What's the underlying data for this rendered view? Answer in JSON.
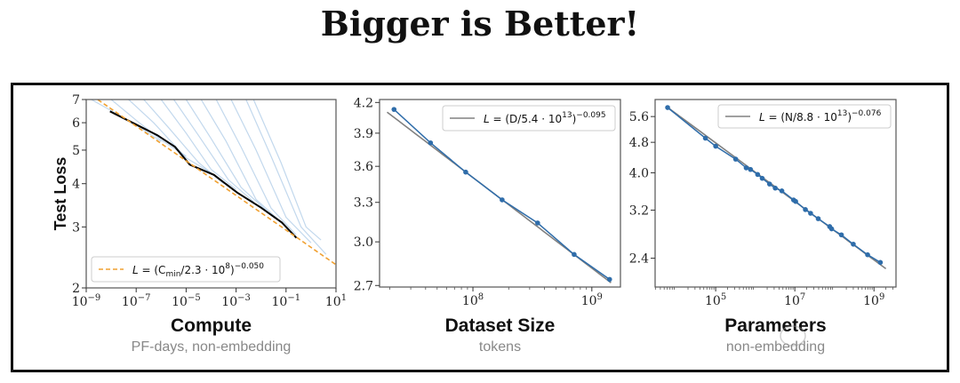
{
  "title": "Bigger is Better!",
  "watermark": "颠覆式创新",
  "colors": {
    "point": "#2f6daa",
    "curve": "#8fb8de",
    "frontier": "#000000",
    "fit": "#808080",
    "fit_orange": "#f0a030",
    "axis": "#555555"
  },
  "chart_data": [
    {
      "type": "line",
      "xlabel": "Compute",
      "xsublabel": "PF-days, non-embedding",
      "ylabel": "Test Loss",
      "xscale": "log",
      "yscale": "log",
      "xlim": [
        1e-09,
        10
      ],
      "ylim": [
        2,
        7
      ],
      "xticks": [
        {
          "base": "10",
          "exp": "−9",
          "v": 1e-09
        },
        {
          "base": "10",
          "exp": "−7",
          "v": 1e-07
        },
        {
          "base": "10",
          "exp": "−5",
          "v": 1e-05
        },
        {
          "base": "10",
          "exp": "−3",
          "v": 0.001
        },
        {
          "base": "10",
          "exp": "−1",
          "v": 0.1
        },
        {
          "base": "10",
          "exp": "1",
          "v": 10
        }
      ],
      "yticks": [
        {
          "label": "2",
          "v": 2
        },
        {
          "label": "3",
          "v": 3
        },
        {
          "label": "4",
          "v": 4
        },
        {
          "label": "5",
          "v": 5
        },
        {
          "label": "6",
          "v": 6
        },
        {
          "label": "7",
          "v": 7
        }
      ],
      "legend": {
        "position": "lower-left",
        "style": "dashed-orange",
        "parts": [
          {
            "t": "L"
          },
          {
            "t": " = (C"
          },
          {
            "t": "min",
            "sub": true
          },
          {
            "t": "/2.3 · 10"
          },
          {
            "t": "8",
            "sup": true
          },
          {
            "t": ")"
          },
          {
            "t": "−0.050",
            "sup": true
          }
        ]
      },
      "fit": {
        "coef": 230000000.0,
        "exponent": -0.05,
        "xrange": [
          1e-09,
          10
        ]
      },
      "frontier": [
        [
          8.9e-09,
          6.47
        ],
        [
          7.9e-08,
          5.98
        ],
        [
          7.1e-07,
          5.52
        ],
        [
          3.6e-06,
          5.11
        ],
        [
          1.4e-05,
          4.54
        ],
        [
          0.00013,
          4.24
        ],
        [
          0.0011,
          3.77
        ],
        [
          0.01,
          3.41
        ],
        [
          0.068,
          3.09
        ],
        [
          0.26,
          2.79
        ]
      ],
      "curves": [
        [
          [
            1.6e-09,
            7
          ],
          [
            1e-08,
            6.5
          ],
          [
            1e-07,
            5.9
          ],
          [
            1e-06,
            5.3
          ]
        ],
        [
          [
            1e-08,
            7
          ],
          [
            1e-07,
            6.1
          ],
          [
            1e-06,
            5.35
          ],
          [
            1e-05,
            4.8
          ]
        ],
        [
          [
            5e-08,
            7
          ],
          [
            5e-07,
            6.0
          ],
          [
            1e-05,
            4.75
          ],
          [
            0.0001,
            4.3
          ]
        ],
        [
          [
            2e-07,
            7
          ],
          [
            2e-06,
            5.8
          ],
          [
            3.2e-05,
            4.6
          ],
          [
            0.00032,
            4.0
          ]
        ],
        [
          [
            1e-06,
            7
          ],
          [
            1e-05,
            5.6
          ],
          [
            0.0001,
            4.4
          ],
          [
            0.001,
            3.85
          ]
        ],
        [
          [
            3.2e-06,
            7
          ],
          [
            3.2e-05,
            5.5
          ],
          [
            0.0005,
            4.1
          ],
          [
            0.005,
            3.55
          ]
        ],
        [
          [
            1e-05,
            7
          ],
          [
            0.0001,
            5.4
          ],
          [
            0.0016,
            3.9
          ],
          [
            0.016,
            3.35
          ]
        ],
        [
          [
            4e-05,
            7
          ],
          [
            0.0004,
            5.3
          ],
          [
            0.0063,
            3.6
          ],
          [
            0.063,
            3.1
          ]
        ],
        [
          [
            0.00016,
            7
          ],
          [
            0.0016,
            5.1
          ],
          [
            0.025,
            3.4
          ],
          [
            0.25,
            2.85
          ]
        ],
        [
          [
            0.00063,
            7
          ],
          [
            0.0063,
            5.0
          ],
          [
            0.1,
            3.2
          ],
          [
            1,
            2.7
          ]
        ],
        [
          [
            0.0025,
            7
          ],
          [
            0.025,
            4.8
          ],
          [
            0.4,
            3.0
          ],
          [
            4,
            2.5
          ]
        ],
        [
          [
            0.005,
            7
          ],
          [
            0.063,
            4.6
          ],
          [
            0.63,
            3.0
          ],
          [
            2.5,
            2.75
          ]
        ]
      ]
    },
    {
      "type": "line",
      "xlabel": "Dataset Size",
      "xsublabel": "tokens",
      "xscale": "log",
      "yscale": "log",
      "xlim": [
        16400000.0,
        1740000000.0
      ],
      "ylim": [
        2.69,
        4.23
      ],
      "xticks": [
        {
          "base": "10",
          "exp": "8",
          "v": 100000000.0
        },
        {
          "base": "10",
          "exp": "9",
          "v": 1000000000.0
        }
      ],
      "yticks": [
        {
          "label": "2.7",
          "v": 2.7
        },
        {
          "label": "3.0",
          "v": 3.0
        },
        {
          "label": "3.3",
          "v": 3.3
        },
        {
          "label": "3.6",
          "v": 3.6
        },
        {
          "label": "3.9",
          "v": 3.9
        },
        {
          "label": "4.2",
          "v": 4.2
        }
      ],
      "legend": {
        "position": "top-right",
        "style": "solid-gray",
        "parts": [
          {
            "t": "L"
          },
          {
            "t": " = (D/5.4 · 10"
          },
          {
            "t": "13",
            "sup": true
          },
          {
            "t": ")"
          },
          {
            "t": "−0.095",
            "sup": true
          }
        ]
      },
      "fit": {
        "coef": 54000000000000.0,
        "exponent": -0.095,
        "xrange": [
          19000000.0,
          1450000000.0
        ]
      },
      "points": [
        [
          21700000.0,
          4.13
        ],
        [
          44000000.0,
          3.81
        ],
        [
          87000000.0,
          3.55
        ],
        [
          176000000.0,
          3.32
        ],
        [
          350000000.0,
          3.14
        ],
        [
          710000000.0,
          2.91
        ],
        [
          1410000000.0,
          2.74
        ]
      ]
    },
    {
      "type": "line",
      "xlabel": "Parameters",
      "xsublabel": "non-embedding",
      "xscale": "log",
      "yscale": "log",
      "xlim": [
        2950,
        3600000000.0
      ],
      "ylim": [
        2.02,
        6.2
      ],
      "xticks": [
        {
          "base": "10",
          "exp": "5",
          "v": 100000.0
        },
        {
          "base": "10",
          "exp": "7",
          "v": 10000000.0
        },
        {
          "base": "10",
          "exp": "9",
          "v": 1000000000.0
        }
      ],
      "yticks": [
        {
          "label": "2.4",
          "v": 2.4
        },
        {
          "label": "3.2",
          "v": 3.2
        },
        {
          "label": "4.0",
          "v": 4.0
        },
        {
          "label": "4.8",
          "v": 4.8
        },
        {
          "label": "5.6",
          "v": 5.6
        }
      ],
      "legend": {
        "position": "top-right",
        "style": "solid-gray",
        "parts": [
          {
            "t": "L"
          },
          {
            "t": " = (N/8.8 · 10"
          },
          {
            "t": "13",
            "sup": true
          },
          {
            "t": ")"
          },
          {
            "t": "−0.076",
            "sup": true
          }
        ]
      },
      "fit": {
        "coef": 88000000000000.0,
        "exponent": -0.076,
        "xrange": [
          6200.0,
          2000000000.0
        ]
      },
      "points": [
        [
          6100.0,
          5.91
        ],
        [
          55000.0,
          4.92
        ],
        [
          100000.0,
          4.69
        ],
        [
          320000.0,
          4.34
        ],
        [
          590000.0,
          4.12
        ],
        [
          760000.0,
          4.08
        ],
        [
          1150000.0,
          3.96
        ],
        [
          1500000.0,
          3.87
        ],
        [
          2300000.0,
          3.74
        ],
        [
          3200000.0,
          3.65
        ],
        [
          4700000.0,
          3.59
        ],
        [
          9300000.0,
          3.4
        ],
        [
          10500000.0,
          3.37
        ],
        [
          18500000.0,
          3.21
        ],
        [
          25000000.0,
          3.14
        ],
        [
          39000000.0,
          3.04
        ],
        [
          76000000.0,
          2.9
        ],
        [
          85000000.0,
          2.86
        ],
        [
          150000000.0,
          2.76
        ],
        [
          300000000.0,
          2.61
        ],
        [
          690000000.0,
          2.45
        ],
        [
          1450000000.0,
          2.34
        ]
      ]
    }
  ]
}
